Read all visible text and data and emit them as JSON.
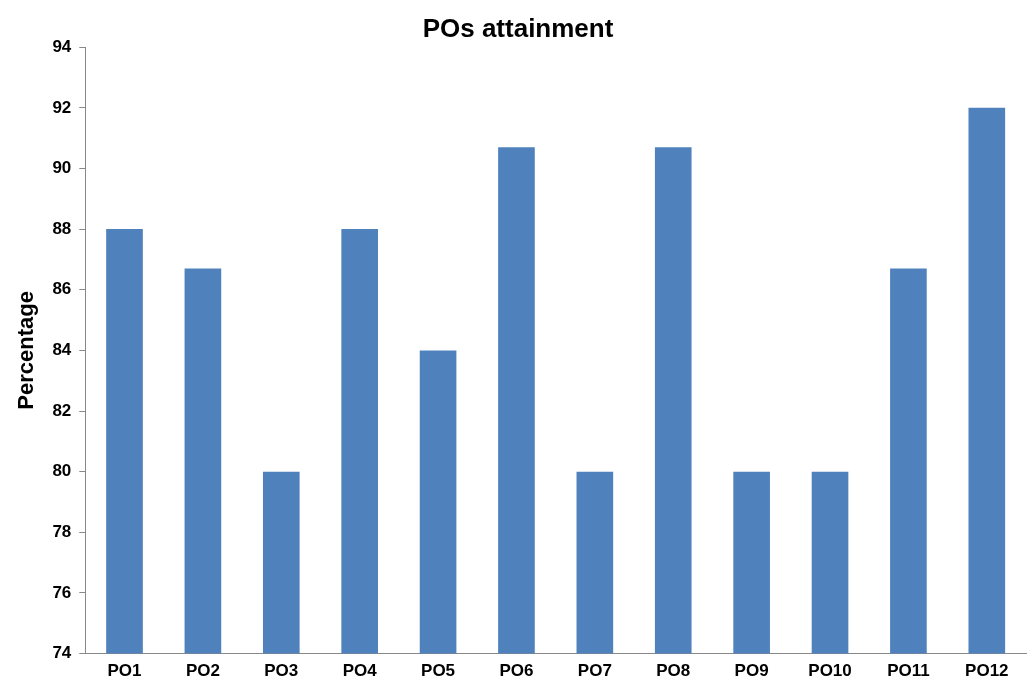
{
  "chart_data": {
    "type": "bar",
    "title": "POs attainment",
    "ylabel": "Percentage",
    "categories": [
      "PO1",
      "PO2",
      "PO3",
      "PO4",
      "PO5",
      "PO6",
      "PO7",
      "PO8",
      "PO9",
      "PO10",
      "PO11",
      "PO12"
    ],
    "values": [
      88,
      86.7,
      80,
      88,
      84,
      90.7,
      80,
      90.7,
      80,
      80,
      86.7,
      92
    ],
    "color": "#4f81bd",
    "ylim": [
      74,
      94
    ],
    "yticks": [
      74,
      76,
      78,
      80,
      82,
      84,
      86,
      88,
      90,
      92,
      94
    ],
    "grid": false,
    "legend": false
  }
}
